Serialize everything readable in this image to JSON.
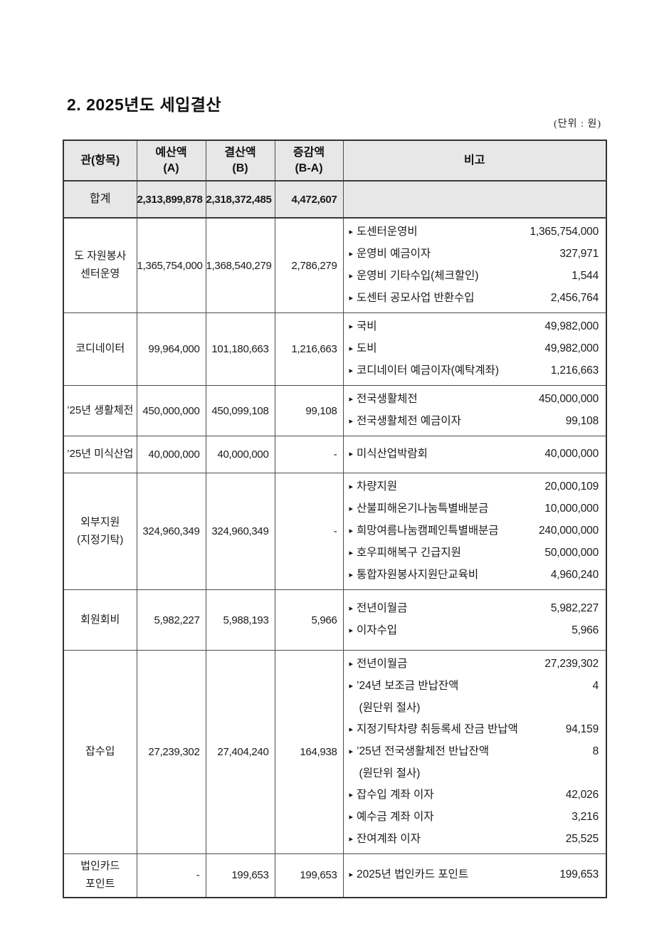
{
  "page": {
    "title": "2. 2025년도 세입결산",
    "unit_note": "(단위 : 원)"
  },
  "icons": {
    "remark_bullet": "▸"
  },
  "colors": {
    "header_bg": "#e7e7e7",
    "border": "#3a3a3a",
    "text": "#1a1a1a"
  },
  "table": {
    "columns": [
      {
        "lines": [
          "관(항목)"
        ]
      },
      {
        "lines": [
          "예산액",
          "(A)"
        ]
      },
      {
        "lines": [
          "결산액",
          "(B)"
        ]
      },
      {
        "lines": [
          "증감액",
          "(B-A)"
        ]
      },
      {
        "lines": [
          "비고"
        ]
      }
    ],
    "rows": [
      {
        "type": "total",
        "category_lines": [
          "합계"
        ],
        "budget": "2,313,899,878",
        "settlement": "2,318,372,485",
        "change": "4,472,607",
        "remarks": []
      },
      {
        "type": "data",
        "category_lines": [
          "도 자원봉사",
          "센터운영"
        ],
        "budget": "1,365,754,000",
        "settlement": "1,368,540,279",
        "change": "2,786,279",
        "remarks": [
          {
            "label": "도센터운영비",
            "amount": "1,365,754,000"
          },
          {
            "label": "운영비 예금이자",
            "amount": "327,971"
          },
          {
            "label": "운영비 기타수입(체크할인)",
            "amount": "1,544"
          },
          {
            "label": "도센터 공모사업 반환수입",
            "amount": "2,456,764"
          }
        ]
      },
      {
        "type": "data",
        "category_lines": [
          "코디네이터"
        ],
        "budget": "99,964,000",
        "settlement": "101,180,663",
        "change": "1,216,663",
        "remarks": [
          {
            "label": "국비",
            "amount": "49,982,000"
          },
          {
            "label": "도비",
            "amount": "49,982,000"
          },
          {
            "label": "코디네이터 예금이자(예탁계좌)",
            "amount": "1,216,663"
          }
        ]
      },
      {
        "type": "data",
        "category_lines": [
          "’25년 생활체전"
        ],
        "budget": "450,000,000",
        "settlement": "450,099,108",
        "change": "99,108",
        "remarks": [
          {
            "label": "전국생활체전",
            "amount": "450,000,000"
          },
          {
            "label": "전국생활체전 예금이자",
            "amount": "99,108"
          }
        ]
      },
      {
        "type": "data",
        "category_lines": [
          "’25년 미식산업"
        ],
        "budget": "40,000,000",
        "settlement": "40,000,000",
        "change": "-",
        "remarks": [
          {
            "label": "미식산업박람회",
            "amount": "40,000,000"
          }
        ]
      },
      {
        "type": "data",
        "category_lines": [
          "외부지원",
          "(지정기탁)"
        ],
        "budget": "324,960,349",
        "settlement": "324,960,349",
        "change": "-",
        "remarks": [
          {
            "label": "차량지원",
            "amount": "20,000,109"
          },
          {
            "label": "산불피해온기나눔특별배분금",
            "amount": "10,000,000"
          },
          {
            "label": "희망여름나눔캠페인특별배분금",
            "amount": "240,000,000"
          },
          {
            "label": "호우피해복구 긴급지원",
            "amount": "50,000,000"
          },
          {
            "label": "통합자원봉사지원단교육비",
            "amount": "4,960,240"
          }
        ]
      },
      {
        "type": "data",
        "category_lines": [
          "회원회비"
        ],
        "budget": "5,982,227",
        "settlement": "5,988,193",
        "change": "5,966",
        "remarks": [
          {
            "label": "전년이월금",
            "amount": "5,982,227"
          },
          {
            "label": "이자수입",
            "amount": "5,966"
          }
        ]
      },
      {
        "type": "data",
        "category_lines": [
          "잡수입"
        ],
        "budget": "27,239,302",
        "settlement": "27,404,240",
        "change": "164,938",
        "remarks": [
          {
            "label": "전년이월금",
            "amount": "27,239,302"
          },
          {
            "label": "’24년 보조금 반납잔액",
            "amount": "4"
          },
          {
            "label": "(원단위 절사)",
            "amount": "",
            "continuation": true
          },
          {
            "label": "지정기탁차량 취등록세 잔금 반납액",
            "amount": "94,159"
          },
          {
            "label": "’25년 전국생활체전 반납잔액",
            "amount": "8"
          },
          {
            "label": "(원단위 절사)",
            "amount": "",
            "continuation": true
          },
          {
            "label": "잡수입 계좌 이자",
            "amount": "42,026"
          },
          {
            "label": "예수금 계좌 이자",
            "amount": "3,216"
          },
          {
            "label": "잔여계좌 이자",
            "amount": "25,525"
          }
        ]
      },
      {
        "type": "data",
        "category_lines": [
          "법인카드",
          "포인트"
        ],
        "budget": "-",
        "settlement": "199,653",
        "change": "199,653",
        "remarks": [
          {
            "label": "2025년 법인카드 포인트",
            "amount": "199,653"
          }
        ]
      }
    ]
  }
}
